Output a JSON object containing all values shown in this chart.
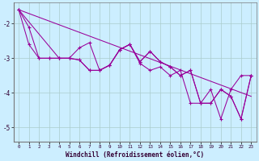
{
  "xlabel": "Windchill (Refroidissement éolien,°C)",
  "background_color": "#cceeff",
  "grid_color": "#aacccc",
  "line_color": "#990099",
  "xlim": [
    -0.5,
    23.5
  ],
  "ylim": [
    -5.4,
    -1.4
  ],
  "yticks": [
    -5,
    -4,
    -3,
    -2
  ],
  "xticks": [
    0,
    1,
    2,
    3,
    4,
    5,
    6,
    7,
    8,
    9,
    10,
    11,
    12,
    13,
    14,
    15,
    16,
    17,
    18,
    19,
    20,
    21,
    22,
    23
  ],
  "trend_x": [
    0,
    23
  ],
  "trend_y": [
    -1.6,
    -4.1
  ],
  "line_a_x": [
    0,
    1,
    2,
    3,
    4,
    5,
    6,
    7,
    8,
    9,
    10,
    11,
    12,
    13,
    14,
    15,
    16,
    17,
    18,
    19,
    20,
    21,
    22,
    23
  ],
  "line_a_y": [
    -1.6,
    -2.1,
    -3.0,
    -3.0,
    -3.0,
    -3.0,
    -2.7,
    -2.55,
    -3.35,
    -3.2,
    -2.75,
    -2.6,
    -3.15,
    -3.35,
    -3.25,
    -3.5,
    -3.35,
    -4.3,
    -4.3,
    -3.9,
    -4.75,
    -3.9,
    -3.5,
    -3.5
  ],
  "line_b_x": [
    0,
    1,
    2,
    3,
    4,
    5,
    6,
    7,
    8,
    9,
    10,
    11,
    12,
    13,
    14,
    15,
    16,
    17,
    18,
    19,
    20,
    21,
    22,
    23
  ],
  "line_b_y": [
    -1.6,
    -2.6,
    -3.0,
    -3.0,
    -3.0,
    -3.0,
    -3.05,
    -3.35,
    -3.35,
    -3.2,
    -2.75,
    -2.6,
    -3.1,
    -2.8,
    -3.1,
    -3.25,
    -3.5,
    -3.35,
    -4.3,
    -4.3,
    -3.9,
    -4.1,
    -4.75,
    -3.5
  ],
  "line_c_x": [
    0,
    4,
    5,
    6,
    7,
    8,
    9,
    10,
    11,
    12,
    13,
    14,
    15,
    16,
    17,
    18,
    19,
    20,
    21,
    22,
    23
  ],
  "line_c_y": [
    -1.6,
    -3.0,
    -3.0,
    -3.05,
    -3.35,
    -3.35,
    -3.2,
    -2.75,
    -2.6,
    -3.1,
    -2.8,
    -3.1,
    -3.25,
    -3.5,
    -3.35,
    -4.3,
    -4.3,
    -3.9,
    -4.1,
    -4.75,
    -3.5
  ]
}
